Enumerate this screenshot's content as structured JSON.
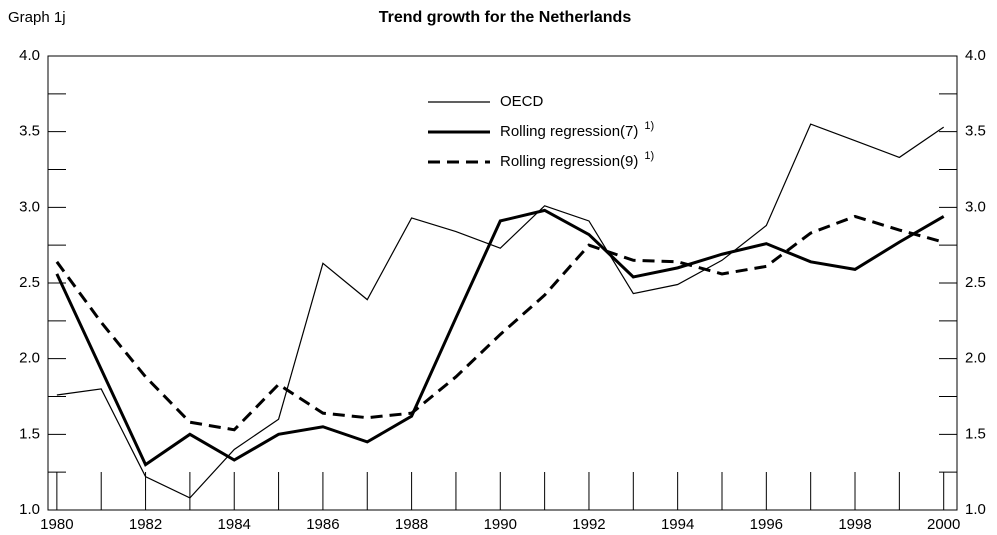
{
  "chart_data": {
    "type": "line",
    "caption": "Graph 1j",
    "title": "Trend growth for the Netherlands",
    "note": "1)",
    "x": [
      1980,
      1981,
      1982,
      1983,
      1984,
      1985,
      1986,
      1987,
      1988,
      1989,
      1990,
      1991,
      1992,
      1993,
      1994,
      1995,
      1996,
      1997,
      1998,
      1999,
      2000
    ],
    "series": [
      {
        "name": "OECD",
        "color": "#000000",
        "style": "thin",
        "note": true,
        "values": [
          1.76,
          1.8,
          1.22,
          1.08,
          1.4,
          1.6,
          2.63,
          2.39,
          2.93,
          2.84,
          2.73,
          3.01,
          2.91,
          2.43,
          2.49,
          2.65,
          2.88,
          3.55,
          3.44,
          3.33,
          3.53
        ]
      },
      {
        "name": "Rolling regression(7)",
        "color": "#000000",
        "style": "thick",
        "note": true,
        "values": [
          2.56,
          1.93,
          1.3,
          1.5,
          1.33,
          1.5,
          1.55,
          1.45,
          1.62,
          2.27,
          2.91,
          2.98,
          2.82,
          2.54,
          2.6,
          2.69,
          2.76,
          2.64,
          2.59,
          2.77,
          2.94
        ]
      },
      {
        "name": "Rolling regression(9)",
        "color": "#000000",
        "style": "dashed",
        "note": true,
        "values": [
          2.64,
          2.24,
          1.88,
          1.58,
          1.53,
          1.83,
          1.64,
          1.61,
          1.64,
          1.88,
          2.16,
          2.42,
          2.75,
          2.65,
          2.64,
          2.56,
          2.61,
          2.83,
          2.94,
          2.85,
          2.77
        ]
      }
    ],
    "xlim": [
      1979.8,
      2000.3
    ],
    "xticks": [
      1980,
      1982,
      1984,
      1986,
      1988,
      1990,
      1992,
      1994,
      1996,
      1998,
      2000
    ],
    "xticks_minor": [
      1981,
      1983,
      1985,
      1987,
      1989,
      1991,
      1993,
      1995,
      1997,
      1999
    ],
    "ylim": [
      1.0,
      4.0
    ],
    "yticks": [
      {
        "value": 1.0,
        "label": "1.0"
      },
      {
        "value": 1.5,
        "label": "1.5"
      },
      {
        "value": 2.0,
        "label": "2.0"
      },
      {
        "value": 2.5,
        "label": "2.5"
      },
      {
        "value": 3.0,
        "label": "3.0"
      },
      {
        "value": 3.5,
        "label": "3.5"
      },
      {
        "value": 4.0,
        "label": "4.0"
      }
    ],
    "yticks_minor": [
      1.25,
      1.75,
      2.25,
      2.75,
      3.25,
      3.75
    ],
    "y2lim": [
      1.0,
      4.0
    ],
    "grid": false
  }
}
